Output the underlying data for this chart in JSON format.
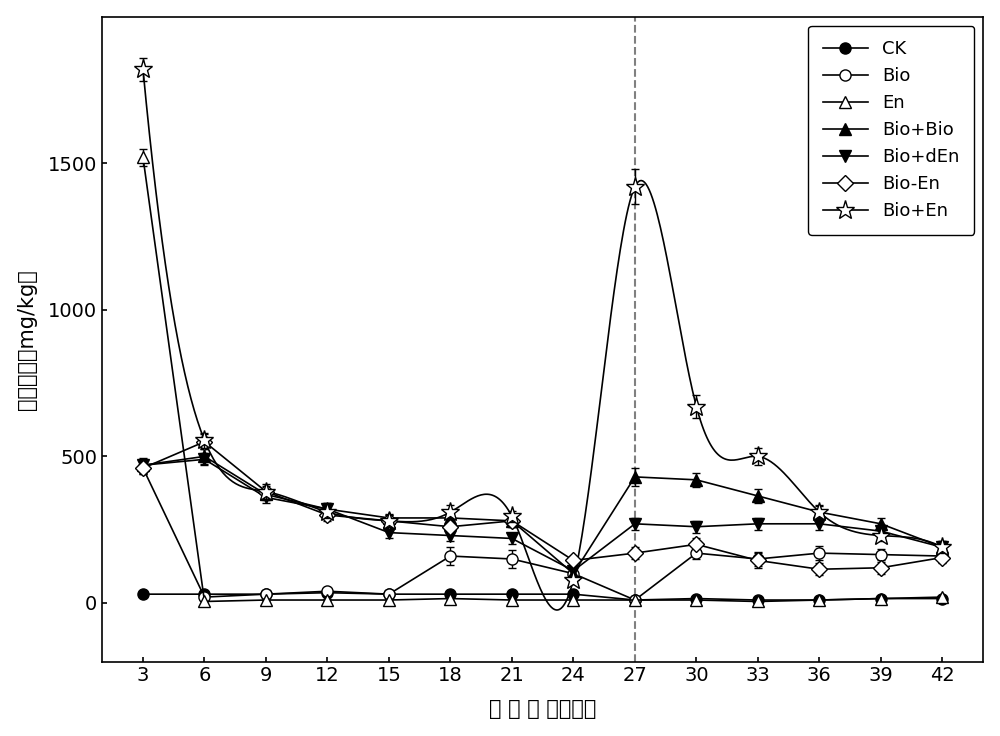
{
  "x": [
    3,
    6,
    9,
    12,
    15,
    18,
    21,
    24,
    27,
    30,
    33,
    36,
    39,
    42
  ],
  "series": {
    "CK": {
      "y": [
        30,
        30,
        30,
        35,
        30,
        30,
        30,
        30,
        10,
        15,
        10,
        10,
        15,
        15
      ],
      "yerr": [
        5,
        5,
        3,
        3,
        3,
        3,
        3,
        3,
        3,
        5,
        3,
        3,
        3,
        3
      ],
      "marker": "o",
      "fillstyle": "full",
      "label": "CK"
    },
    "Bio": {
      "y": [
        460,
        20,
        30,
        40,
        30,
        160,
        150,
        100,
        10,
        170,
        150,
        170,
        165,
        160
      ],
      "yerr": [
        20,
        10,
        10,
        10,
        10,
        30,
        30,
        20,
        10,
        20,
        25,
        25,
        20,
        20
      ],
      "marker": "o",
      "fillstyle": "none",
      "label": "Bio"
    },
    "En": {
      "y": [
        1520,
        5,
        10,
        10,
        10,
        15,
        10,
        10,
        10,
        10,
        5,
        10,
        15,
        20
      ],
      "yerr": [
        30,
        5,
        5,
        5,
        5,
        5,
        5,
        5,
        5,
        5,
        5,
        5,
        5,
        5
      ],
      "marker": "^",
      "fillstyle": "none",
      "label": "En"
    },
    "Bio+Bio": {
      "y": [
        470,
        500,
        370,
        320,
        290,
        290,
        280,
        100,
        430,
        420,
        365,
        310,
        270,
        190
      ],
      "yerr": [
        25,
        25,
        20,
        20,
        15,
        25,
        20,
        15,
        30,
        25,
        25,
        20,
        20,
        20
      ],
      "marker": "^",
      "fillstyle": "full",
      "label": "Bio+Bio"
    },
    "Bio+dEn": {
      "y": [
        470,
        490,
        360,
        320,
        240,
        230,
        220,
        110,
        270,
        260,
        270,
        270,
        245,
        190
      ],
      "yerr": [
        20,
        20,
        20,
        20,
        20,
        20,
        20,
        15,
        20,
        20,
        20,
        20,
        20,
        15
      ],
      "marker": "v",
      "fillstyle": "full",
      "label": "Bio+dEn"
    },
    "Bio-En": {
      "y": [
        460,
        550,
        380,
        300,
        280,
        260,
        280,
        145,
        170,
        200,
        145,
        115,
        120,
        155
      ],
      "yerr": [
        20,
        25,
        20,
        20,
        20,
        25,
        20,
        15,
        20,
        20,
        25,
        20,
        20,
        20
      ],
      "marker": "D",
      "fillstyle": "none",
      "label": "Bio-En"
    },
    "Bio+En": {
      "y": [
        1820,
        555,
        380,
        310,
        280,
        310,
        295,
        80,
        1420,
        670,
        500,
        310,
        230,
        190
      ],
      "yerr": [
        40,
        25,
        25,
        20,
        20,
        25,
        20,
        15,
        60,
        40,
        30,
        25,
        20,
        20
      ],
      "marker": "*",
      "fillstyle": "none",
      "label": "Bio+En",
      "smooth": true
    }
  },
  "xlabel_parts": [
    "处",
    " ",
    "理",
    " ",
    "时",
    " ",
    "间",
    "（天）"
  ],
  "ylabel_parts": [
    "降解速率（mg/kg）"
  ],
  "xlim": [
    1,
    44
  ],
  "ylim": [
    -200,
    2000
  ],
  "xticks": [
    3,
    6,
    9,
    12,
    15,
    18,
    21,
    24,
    27,
    30,
    33,
    36,
    39,
    42
  ],
  "yticks": [
    0,
    500,
    1000,
    1500
  ],
  "vline_x": 27,
  "background_color": "#ffffff",
  "line_color": "#000000",
  "smooth_series": [
    "Bio+En"
  ],
  "series_order": [
    "CK",
    "Bio",
    "En",
    "Bio+Bio",
    "Bio+dEn",
    "Bio-En",
    "Bio+En"
  ]
}
